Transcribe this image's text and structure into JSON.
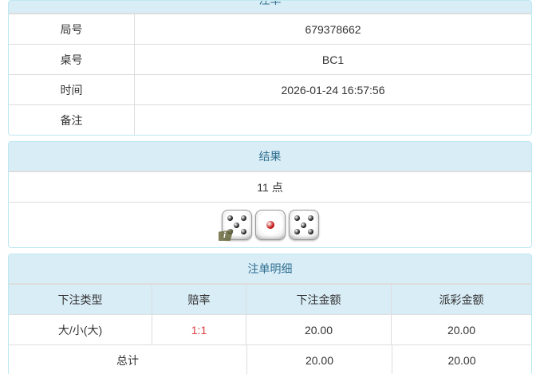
{
  "colors": {
    "heading_bg": "#d9edf7",
    "heading_text": "#31708f",
    "panel_border": "#bce8f1",
    "cell_border": "#dddddd",
    "body_text": "#333333",
    "odds_red": "#e03c3c",
    "pip_black": "#1f1f1f",
    "pip_red": "#c11212",
    "info_badge_olive": "#69693c"
  },
  "bet_slip": {
    "title": "注单",
    "rows": [
      {
        "label": "局号",
        "value": "679378662"
      },
      {
        "label": "桌号",
        "value": "BC1"
      },
      {
        "label": "时间",
        "value": "2026-01-24 16:57:56"
      },
      {
        "label": "备注",
        "value": ""
      }
    ]
  },
  "result": {
    "title": "结果",
    "points": "11 点",
    "dice": [
      {
        "value": 5,
        "pip_color": "#1f1f1f"
      },
      {
        "value": 1,
        "pip_color": "#c11212"
      },
      {
        "value": 5,
        "pip_color": "#1f1f1f"
      }
    ],
    "info_badge": {
      "label": "i"
    }
  },
  "bet_details": {
    "title": "注单明细",
    "columns": [
      "下注类型",
      "赔率",
      "下注金额",
      "派彩金额"
    ],
    "rows": [
      {
        "bet_type": "大/小(大)",
        "odds": "1:1",
        "bet_amount": "20.00",
        "payout": "20.00"
      }
    ],
    "total": {
      "label": "总计",
      "bet_amount": "20.00",
      "payout": "20.00"
    }
  }
}
